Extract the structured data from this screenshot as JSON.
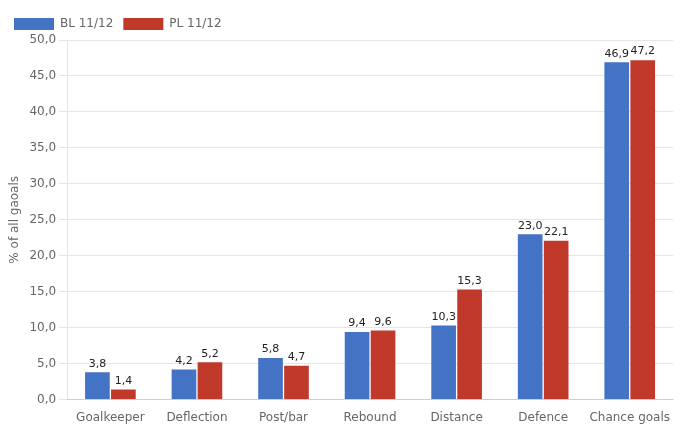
{
  "chart_data": {
    "type": "bar",
    "categories": [
      "Goalkeeper",
      "Deflection",
      "Post/bar",
      "Rebound",
      "Distance",
      "Defence",
      "Chance goals"
    ],
    "series": [
      {
        "name": "BL 11/12",
        "color": "#4472c4",
        "values": [
          3.8,
          4.2,
          5.8,
          9.4,
          10.3,
          23.0,
          46.9
        ],
        "value_labels": [
          "3,8",
          "4,2",
          "5,8",
          "9,4",
          "10,3",
          "23,0",
          "46,9"
        ]
      },
      {
        "name": "PL 11/12",
        "color": "#c0392b",
        "values": [
          1.4,
          5.2,
          4.7,
          9.6,
          15.3,
          22.1,
          47.2
        ],
        "value_labels": [
          "1,4",
          "5,2",
          "4,7",
          "9,6",
          "15,3",
          "22,1",
          "47,2"
        ]
      }
    ],
    "ylabel": "% of all gaoals",
    "ylim": [
      0,
      50
    ],
    "yticks": [
      {
        "value": 0,
        "label": "0,0"
      },
      {
        "value": 5,
        "label": "5,0"
      },
      {
        "value": 10,
        "label": "10,0"
      },
      {
        "value": 15,
        "label": "15,0"
      },
      {
        "value": 20,
        "label": "20,0"
      },
      {
        "value": 25,
        "label": "25,0"
      },
      {
        "value": 30,
        "label": "30,0"
      },
      {
        "value": 35,
        "label": "35,0"
      },
      {
        "value": 40,
        "label": "40,0"
      },
      {
        "value": 45,
        "label": "45,0"
      },
      {
        "value": 50,
        "label": "50,0"
      }
    ],
    "grid": true,
    "legend": "upper left",
    "data_labels": true
  }
}
